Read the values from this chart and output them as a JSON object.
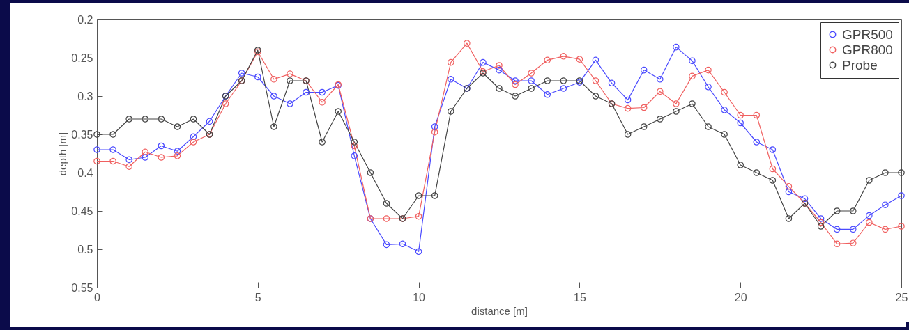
{
  "chart_data": {
    "type": "line",
    "xlabel": "distance [m]",
    "ylabel": "depth [m]",
    "x": [
      0,
      0.5,
      1,
      1.5,
      2,
      2.5,
      3,
      3.5,
      4,
      4.5,
      5,
      5.5,
      6,
      6.5,
      7,
      7.5,
      8,
      8.5,
      9,
      9.5,
      10,
      10.5,
      11,
      11.5,
      12,
      12.5,
      13,
      13.5,
      14,
      14.5,
      15,
      15.5,
      16,
      16.5,
      17,
      17.5,
      18,
      18.5,
      19,
      19.5,
      20,
      20.5,
      21,
      21.5,
      22,
      22.5,
      23,
      23.5,
      24,
      24.5,
      25
    ],
    "series": [
      {
        "name": "GPR500",
        "color": "#4a4aff",
        "values": [
          0.37,
          0.37,
          0.383,
          0.38,
          0.365,
          0.372,
          0.353,
          0.333,
          0.3,
          0.27,
          0.275,
          0.3,
          0.31,
          0.295,
          0.295,
          0.286,
          0.378,
          0.46,
          0.494,
          0.493,
          0.503,
          0.34,
          0.278,
          0.29,
          0.256,
          0.266,
          0.28,
          0.28,
          0.298,
          0.29,
          0.282,
          0.253,
          0.283,
          0.305,
          0.266,
          0.278,
          0.236,
          0.254,
          0.288,
          0.318,
          0.335,
          0.36,
          0.37,
          0.425,
          0.434,
          0.46,
          0.474,
          0.474,
          0.456,
          0.442,
          0.43
        ]
      },
      {
        "name": "GPR800",
        "color": "#f06060",
        "values": [
          0.385,
          0.385,
          0.392,
          0.373,
          0.38,
          0.378,
          0.36,
          0.35,
          0.31,
          0.28,
          0.242,
          0.278,
          0.271,
          0.28,
          0.308,
          0.285,
          0.365,
          0.46,
          0.46,
          0.46,
          0.457,
          0.347,
          0.256,
          0.231,
          0.268,
          0.26,
          0.285,
          0.27,
          0.253,
          0.248,
          0.252,
          0.28,
          0.31,
          0.316,
          0.315,
          0.294,
          0.31,
          0.274,
          0.266,
          0.295,
          0.325,
          0.325,
          0.395,
          0.418,
          0.44,
          0.465,
          0.493,
          0.492,
          0.465,
          0.474,
          0.47
        ]
      },
      {
        "name": "Probe",
        "color": "#444444",
        "values": [
          0.35,
          0.35,
          0.33,
          0.33,
          0.33,
          0.34,
          0.33,
          0.35,
          0.3,
          0.28,
          0.24,
          0.34,
          0.28,
          0.28,
          0.36,
          0.32,
          0.36,
          0.4,
          0.44,
          0.46,
          0.43,
          0.43,
          0.32,
          0.29,
          0.27,
          0.29,
          0.3,
          0.29,
          0.28,
          0.28,
          0.28,
          0.3,
          0.31,
          0.35,
          0.34,
          0.33,
          0.32,
          0.31,
          0.34,
          0.35,
          0.39,
          0.4,
          0.41,
          0.46,
          0.44,
          0.47,
          0.45,
          0.45,
          0.41,
          0.4,
          0.4
        ]
      }
    ],
    "xlim": [
      0,
      25
    ],
    "xticks": [
      0,
      5,
      10,
      15,
      20,
      25
    ],
    "ylim": [
      0.55,
      0.2
    ],
    "yticks": [
      0.2,
      0.25,
      0.3,
      0.35,
      0.4,
      0.45,
      0.5,
      0.55
    ],
    "grid": false,
    "legend": "top right",
    "marker": "circle",
    "line_style": "solid"
  }
}
